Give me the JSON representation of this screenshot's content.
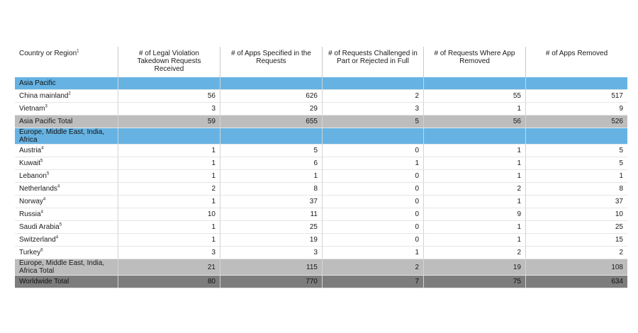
{
  "headers": [
    {
      "label": "Country or Region",
      "sup": "1"
    },
    {
      "label": "# of Legal Violation Takedown Requests Received",
      "sup": ""
    },
    {
      "label": "# of Apps Specified in the Requests",
      "sup": ""
    },
    {
      "label": "# of Requests Challenged in Part or Rejected in Full",
      "sup": ""
    },
    {
      "label": "# of Requests Where App Removed",
      "sup": ""
    },
    {
      "label": "# of Apps Removed",
      "sup": ""
    }
  ],
  "rows": [
    {
      "type": "region",
      "name": "Asia Pacific",
      "sup": "",
      "values": [
        "",
        "",
        "",
        "",
        ""
      ]
    },
    {
      "type": "data",
      "name": "China mainland",
      "sup": "2",
      "values": [
        "56",
        "626",
        "2",
        "55",
        "517"
      ]
    },
    {
      "type": "data",
      "name": "Vietnam",
      "sup": "3",
      "values": [
        "3",
        "29",
        "3",
        "1",
        "9"
      ]
    },
    {
      "type": "subtotal",
      "name": "Asia Pacific Total",
      "sup": "",
      "values": [
        "59",
        "655",
        "5",
        "56",
        "526"
      ]
    },
    {
      "type": "region",
      "name": "Europe, Middle East, India, Africa",
      "sup": "",
      "values": [
        "",
        "",
        "",
        "",
        ""
      ]
    },
    {
      "type": "data",
      "name": "Austria",
      "sup": "4",
      "values": [
        "1",
        "5",
        "0",
        "1",
        "5"
      ]
    },
    {
      "type": "data",
      "name": "Kuwait",
      "sup": "5",
      "values": [
        "1",
        "6",
        "1",
        "1",
        "5"
      ]
    },
    {
      "type": "data",
      "name": "Lebanon",
      "sup": "5",
      "values": [
        "1",
        "1",
        "0",
        "1",
        "1"
      ]
    },
    {
      "type": "data",
      "name": "Netherlands",
      "sup": "4",
      "values": [
        "2",
        "8",
        "0",
        "2",
        "8"
      ]
    },
    {
      "type": "data",
      "name": "Norway",
      "sup": "4",
      "values": [
        "1",
        "37",
        "0",
        "1",
        "37"
      ]
    },
    {
      "type": "data",
      "name": "Russia",
      "sup": "4",
      "values": [
        "10",
        "11",
        "0",
        "9",
        "10"
      ]
    },
    {
      "type": "data",
      "name": "Saudi Arabia",
      "sup": "5",
      "values": [
        "1",
        "25",
        "0",
        "1",
        "25"
      ]
    },
    {
      "type": "data",
      "name": "Switzerland",
      "sup": "4",
      "values": [
        "1",
        "19",
        "0",
        "1",
        "15"
      ]
    },
    {
      "type": "data",
      "name": "Turkey",
      "sup": "6",
      "values": [
        "3",
        "3",
        "1",
        "2",
        "2"
      ]
    },
    {
      "type": "subtotal",
      "name": "Europe, Middle East, India, Africa Total",
      "sup": "",
      "values": [
        "21",
        "115",
        "2",
        "19",
        "108"
      ]
    },
    {
      "type": "total",
      "name": "Worldwide Total",
      "sup": "",
      "values": [
        "80",
        "770",
        "7",
        "75",
        "634"
      ]
    }
  ]
}
